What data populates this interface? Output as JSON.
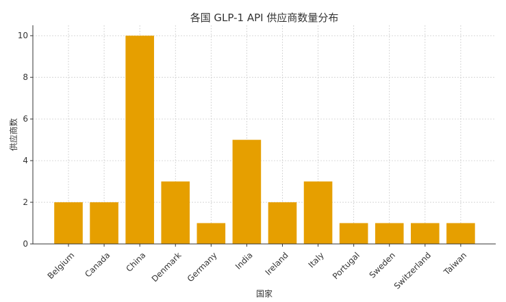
{
  "chart_data": {
    "type": "bar",
    "title": "各国 GLP-1 API 供应商数量分布",
    "xlabel": "国家",
    "ylabel": "供应商数",
    "categories": [
      "Belgium",
      "Canada",
      "China",
      "Denmark",
      "Germany",
      "India",
      "Ireland",
      "Italy",
      "Portugal",
      "Sweden",
      "Switzerland",
      "Taiwan"
    ],
    "values": [
      2,
      2,
      10,
      3,
      1,
      5,
      2,
      3,
      1,
      1,
      1,
      1
    ],
    "ylim": [
      0,
      10.5
    ],
    "yticks": [
      0,
      2,
      4,
      6,
      8,
      10
    ],
    "grid": true,
    "bar_color": "#E69F00"
  }
}
